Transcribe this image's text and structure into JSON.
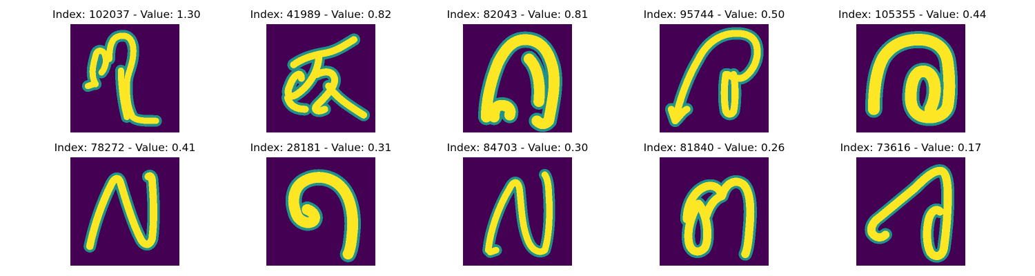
{
  "colors": {
    "background": "#440154",
    "stroke": "#fde725",
    "stroke_edge": "#35b779",
    "stroke_mid": "#21918c"
  },
  "panels": [
    {
      "title": "Index: 102037 - Value: 1.30"
    },
    {
      "title": "Index: 41989 - Value: 0.82"
    },
    {
      "title": "Index: 82043 - Value: 0.81"
    },
    {
      "title": "Index: 95744 - Value: 0.50"
    },
    {
      "title": "Index: 105355 - Value: 0.44"
    },
    {
      "title": "Index: 78272 - Value: 0.41"
    },
    {
      "title": "Index: 28181 - Value: 0.31"
    },
    {
      "title": "Index: 84703 - Value: 0.30"
    },
    {
      "title": "Index: 81840 - Value: 0.26"
    },
    {
      "title": "Index: 73616 - Value: 0.17"
    }
  ]
}
